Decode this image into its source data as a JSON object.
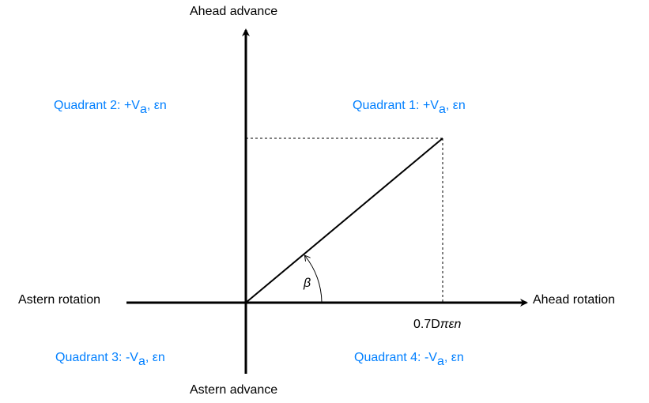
{
  "axes": {
    "top": "Ahead advance",
    "bottom": "Astern advance",
    "left": "Astern rotation",
    "right": "Ahead rotation"
  },
  "quadrants": [
    {
      "prefix": "Quadrant 1: +V",
      "sub": "a",
      "suffix": ", εn"
    },
    {
      "prefix": "Quadrant 2: +V",
      "sub": "a",
      "suffix": ", εn"
    },
    {
      "prefix": "Quadrant 3: -V",
      "sub": "a",
      "suffix": ", εn"
    },
    {
      "prefix": "Quadrant 4: -V",
      "sub": "a",
      "suffix": ", εn"
    }
  ],
  "angle_label": "β",
  "x_marker": {
    "plain": "0.7D",
    "italic": "πεn"
  },
  "colors": {
    "quadrant_text": "#007FFF",
    "lines": "#000000"
  }
}
